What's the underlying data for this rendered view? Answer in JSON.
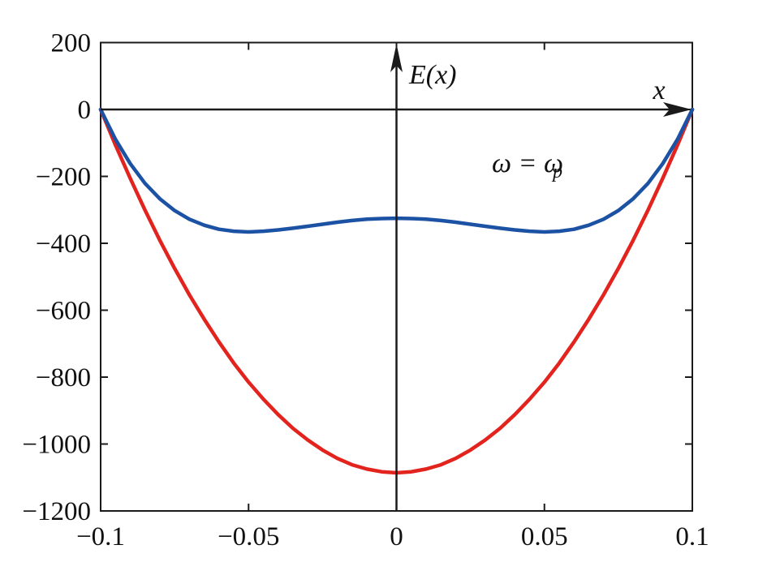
{
  "figure": {
    "background": "#ffffff",
    "frame_color": "#1a1a1a",
    "text_color": "#111111"
  },
  "chart_data": {
    "type": "line",
    "title": "",
    "xlabel": "x",
    "ylabel": "E(x)",
    "annotation": {
      "text": "ω = ω_p",
      "main": "ω = ω",
      "sub": "p"
    },
    "xlim": [
      -0.1,
      0.1
    ],
    "ylim": [
      -1200,
      200
    ],
    "grid": false,
    "legend": "none",
    "x_ticks": [
      -0.1,
      -0.05,
      0,
      0.05,
      0.1
    ],
    "x_tick_labels": [
      "−0.1",
      "−0.05",
      "0",
      "0.05",
      "0.1"
    ],
    "y_ticks": [
      200,
      0,
      -200,
      -400,
      -600,
      -800,
      -1000,
      -1200
    ],
    "y_tick_labels": [
      "200",
      "0",
      "−200",
      "−400",
      "−600",
      "−800",
      "−1000",
      "−1200"
    ],
    "x": [
      -0.1,
      -0.095,
      -0.09,
      -0.085,
      -0.08,
      -0.075,
      -0.07,
      -0.065,
      -0.06,
      -0.055,
      -0.05,
      -0.045,
      -0.04,
      -0.035,
      -0.03,
      -0.025,
      -0.02,
      -0.015,
      -0.01,
      -0.005,
      0,
      0.005,
      0.01,
      0.015,
      0.02,
      0.025,
      0.03,
      0.035,
      0.04,
      0.045,
      0.05,
      0.055,
      0.06,
      0.065,
      0.07,
      0.075,
      0.08,
      0.085,
      0.09,
      0.095,
      0.1
    ],
    "series": [
      {
        "name": "lower-parabola-red",
        "color": "#e2231e",
        "values": [
          0,
          -106,
          -206,
          -301,
          -391,
          -475,
          -554,
          -627,
          -695,
          -758,
          -815,
          -866,
          -912,
          -953,
          -988,
          -1018,
          -1043,
          -1062,
          -1075,
          -1083,
          -1086,
          -1083,
          -1075,
          -1062,
          -1043,
          -1018,
          -988,
          -953,
          -912,
          -866,
          -815,
          -758,
          -695,
          -627,
          -554,
          -475,
          -391,
          -301,
          -206,
          -106,
          0
        ]
      },
      {
        "name": "upper-double-well-blue",
        "color": "#1c52a4",
        "values": [
          0,
          -89,
          -162,
          -221,
          -267,
          -302,
          -328,
          -346,
          -358,
          -364,
          -366,
          -364,
          -360,
          -355,
          -349,
          -343,
          -337,
          -332,
          -328,
          -326,
          -325,
          -326,
          -328,
          -332,
          -337,
          -343,
          -349,
          -355,
          -360,
          -364,
          -366,
          -364,
          -358,
          -346,
          -328,
          -302,
          -267,
          -221,
          -162,
          -89,
          0
        ]
      }
    ]
  }
}
